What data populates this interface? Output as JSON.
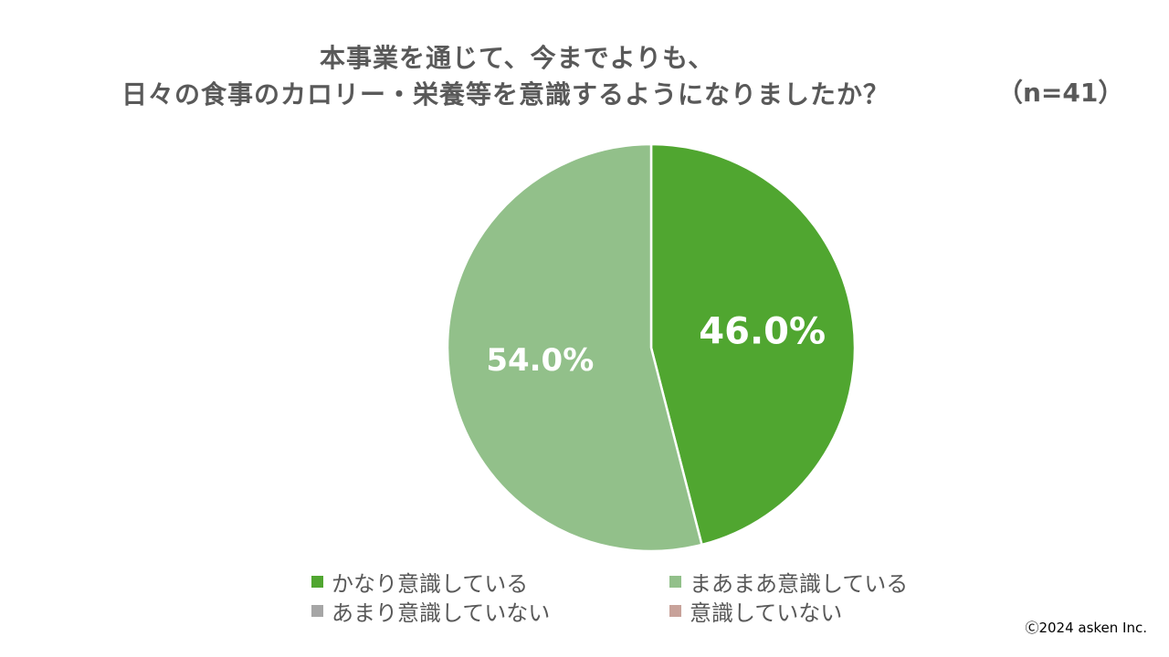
{
  "chart_data": {
    "type": "pie",
    "title_lines": [
      "本事業を通じて、今までよりも、",
      "日々の食事のカロリー・栄養等を意識するようになりましたか？"
    ],
    "sample_size": "（n=41）",
    "slices": [
      {
        "label": "かなり意識している",
        "value": 46.0,
        "value_label": "46.0%",
        "color": "#50a630"
      },
      {
        "label": "まあまあ意識している",
        "value": 54.0,
        "value_label": "54.0%",
        "color": "#92c08a"
      },
      {
        "label": "あまり意識していない",
        "value": 0,
        "value_label": "",
        "color": "#a6a6a6"
      },
      {
        "label": "意識していない",
        "value": 0,
        "value_label": "",
        "color": "#c8a29a"
      }
    ],
    "start": "12 o'clock",
    "direction": "clockwise",
    "legend_position": "bottom"
  },
  "footer": {
    "copyright": "Ⓒ2024 asken Inc."
  }
}
